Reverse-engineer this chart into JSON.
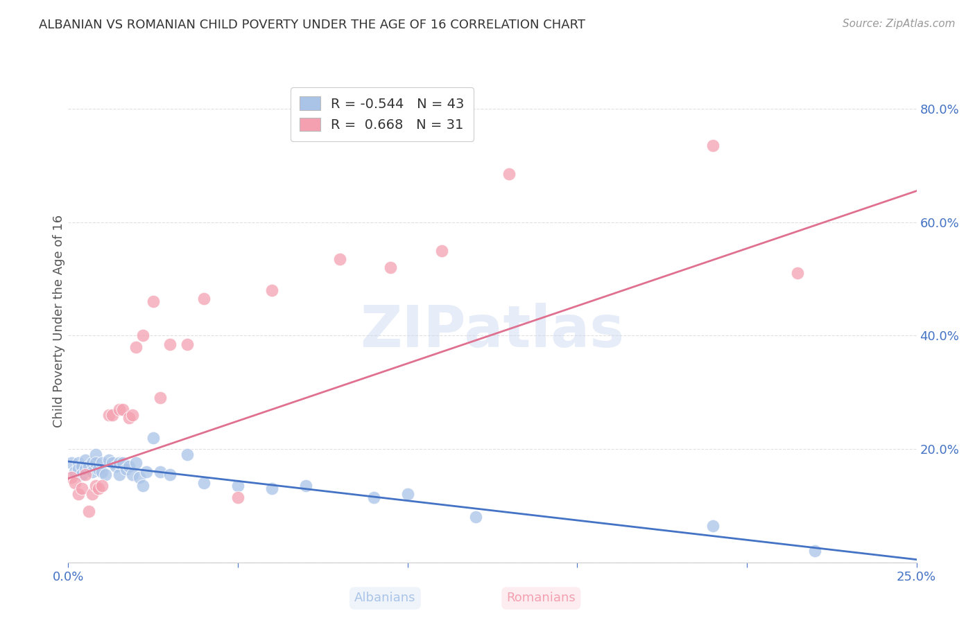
{
  "title": "ALBANIAN VS ROMANIAN CHILD POVERTY UNDER THE AGE OF 16 CORRELATION CHART",
  "source": "Source: ZipAtlas.com",
  "ylabel": "Child Poverty Under the Age of 16",
  "watermark": "ZIPatlas",
  "xlim": [
    0.0,
    0.25
  ],
  "ylim": [
    0.0,
    0.85
  ],
  "xtick_positions": [
    0.0,
    0.05,
    0.1,
    0.15,
    0.2,
    0.25
  ],
  "xticklabels": [
    "0.0%",
    "",
    "",
    "",
    "",
    "25.0%"
  ],
  "ytick_positions": [
    0.0,
    0.2,
    0.4,
    0.6,
    0.8
  ],
  "yticklabels": [
    "",
    "20.0%",
    "40.0%",
    "60.0%",
    "80.0%"
  ],
  "grid_color": "#e0e0e0",
  "background_color": "#ffffff",
  "title_color": "#333333",
  "axis_label_color": "#555555",
  "tick_color": "#4472C4",
  "albanian_color": "#aac4e8",
  "romanian_color": "#f4a0b0",
  "albanian_line_color": "#4472C4",
  "romanian_line_color": "#e07090",
  "legend_label_alb": "R = -0.544   N = 43",
  "legend_label_rom": "R =  0.668   N = 31",
  "albanian_x": [
    0.001,
    0.002,
    0.003,
    0.003,
    0.004,
    0.004,
    0.005,
    0.005,
    0.006,
    0.007,
    0.007,
    0.008,
    0.008,
    0.009,
    0.01,
    0.01,
    0.011,
    0.012,
    0.013,
    0.014,
    0.015,
    0.015,
    0.016,
    0.017,
    0.018,
    0.019,
    0.02,
    0.021,
    0.022,
    0.023,
    0.025,
    0.027,
    0.03,
    0.035,
    0.04,
    0.05,
    0.06,
    0.07,
    0.09,
    0.1,
    0.12,
    0.19,
    0.22
  ],
  "albanian_y": [
    0.175,
    0.16,
    0.175,
    0.165,
    0.17,
    0.155,
    0.18,
    0.165,
    0.17,
    0.175,
    0.16,
    0.19,
    0.175,
    0.165,
    0.175,
    0.16,
    0.155,
    0.18,
    0.175,
    0.17,
    0.155,
    0.175,
    0.175,
    0.165,
    0.17,
    0.155,
    0.175,
    0.15,
    0.135,
    0.16,
    0.22,
    0.16,
    0.155,
    0.19,
    0.14,
    0.135,
    0.13,
    0.135,
    0.115,
    0.12,
    0.08,
    0.065,
    0.02
  ],
  "romanian_x": [
    0.001,
    0.002,
    0.003,
    0.004,
    0.005,
    0.006,
    0.007,
    0.008,
    0.009,
    0.01,
    0.012,
    0.013,
    0.015,
    0.016,
    0.018,
    0.019,
    0.02,
    0.022,
    0.025,
    0.027,
    0.03,
    0.035,
    0.04,
    0.05,
    0.06,
    0.08,
    0.095,
    0.11,
    0.13,
    0.19,
    0.215
  ],
  "romanian_y": [
    0.15,
    0.14,
    0.12,
    0.13,
    0.155,
    0.09,
    0.12,
    0.135,
    0.13,
    0.135,
    0.26,
    0.26,
    0.27,
    0.27,
    0.255,
    0.26,
    0.38,
    0.4,
    0.46,
    0.29,
    0.385,
    0.385,
    0.465,
    0.115,
    0.48,
    0.535,
    0.52,
    0.55,
    0.685,
    0.735,
    0.51
  ],
  "alb_line_x0": 0.0,
  "alb_line_y0": 0.178,
  "alb_line_x1": 0.25,
  "alb_line_y1": 0.005,
  "rom_line_x0": 0.0,
  "rom_line_y0": 0.148,
  "rom_line_x1": 0.25,
  "rom_line_y1": 0.655
}
